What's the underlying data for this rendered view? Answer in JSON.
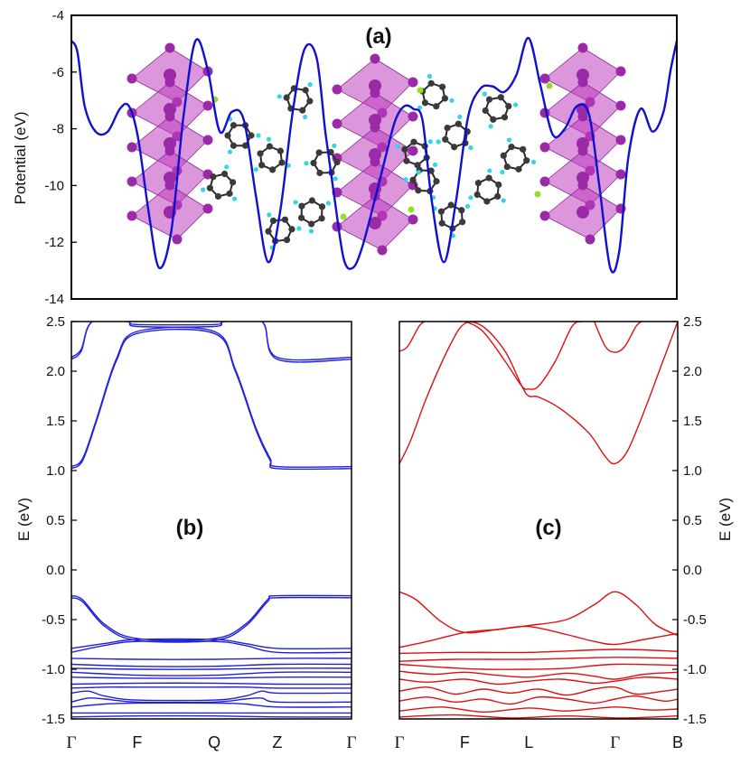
{
  "chart_data": [
    {
      "panel": "(a)",
      "type": "line",
      "ylabel": "Potential (eV)",
      "ylim": [
        -14,
        -4
      ],
      "yticks": [
        -14,
        -12,
        -10,
        -8,
        -6,
        -4
      ],
      "xlim": [
        0,
        1
      ],
      "series": [
        {
          "name": "planar-averaged potential",
          "color": "#1010d0",
          "x": [
            0.0,
            0.01,
            0.022,
            0.04,
            0.06,
            0.08,
            0.095,
            0.11,
            0.128,
            0.145,
            0.165,
            0.185,
            0.205,
            0.225,
            0.245,
            0.265,
            0.285,
            0.305,
            0.325,
            0.345,
            0.365,
            0.385,
            0.405,
            0.42,
            0.435,
            0.45,
            0.465,
            0.48,
            0.5,
            0.52,
            0.535,
            0.55,
            0.565,
            0.58,
            0.595,
            0.615,
            0.635,
            0.655,
            0.675,
            0.695,
            0.715,
            0.735,
            0.755,
            0.775,
            0.795,
            0.815,
            0.835,
            0.855,
            0.872,
            0.89,
            0.905,
            0.92,
            0.94,
            0.96,
            0.978,
            0.99,
            1.0
          ],
          "values": [
            -4.9,
            -5.3,
            -7.2,
            -8.1,
            -8.1,
            -7.3,
            -7.2,
            -8.3,
            -11.0,
            -12.9,
            -11.6,
            -7.6,
            -4.9,
            -5.9,
            -8.1,
            -7.4,
            -7.7,
            -10.4,
            -12.7,
            -10.9,
            -7.5,
            -5.2,
            -5.5,
            -8.2,
            -10.5,
            -12.6,
            -12.9,
            -12.2,
            -10.6,
            -8.9,
            -7.7,
            -7.2,
            -7.3,
            -7.7,
            -10.5,
            -12.7,
            -10.6,
            -7.6,
            -6.6,
            -6.5,
            -6.7,
            -6.1,
            -4.8,
            -6.5,
            -8.2,
            -8.0,
            -7.2,
            -7.5,
            -10.0,
            -12.9,
            -12.3,
            -9.0,
            -7.3,
            -8.1,
            -7.4,
            -5.9,
            -4.9
          ]
        }
      ]
    },
    {
      "panel": "(b)",
      "type": "line",
      "ylabel": "E (eV)",
      "ylim": [
        -1.5,
        2.5
      ],
      "yticks": [
        -1.5,
        -1.0,
        -0.5,
        0.0,
        0.5,
        1.0,
        1.5,
        2.0,
        2.5
      ],
      "ytick_labels": [
        "-1.5",
        "-1.0",
        "-0.5",
        "0.0",
        "0.5",
        "1.0",
        "1.5",
        "2.0",
        "2.5"
      ],
      "xlim": [
        0,
        1
      ],
      "kpoints": [
        {
          "label": "Γ",
          "x": 0.0
        },
        {
          "label": "F",
          "x": 0.235
        },
        {
          "label": "Q",
          "x": 0.51
        },
        {
          "label": "Z",
          "x": 0.735
        },
        {
          "label": "Γ",
          "x": 1.0
        }
      ],
      "series": [
        {
          "name": "cb1",
          "color": "#2020e0",
          "x": [
            0,
            0.04,
            0.09,
            0.16,
            0.235,
            0.51,
            0.585,
            0.66,
            0.71,
            0.735,
            1.0
          ],
          "values": [
            1.02,
            1.1,
            1.5,
            2.1,
            2.38,
            2.38,
            2.0,
            1.4,
            1.1,
            1.02,
            1.02
          ]
        },
        {
          "name": "cb2",
          "color": "#2020e0",
          "x": [
            0,
            0.04,
            0.09,
            0.16,
            0.235,
            0.51,
            0.585,
            0.66,
            0.71,
            0.735,
            1.0
          ],
          "values": [
            1.04,
            1.12,
            1.52,
            2.12,
            2.4,
            2.4,
            2.02,
            1.42,
            1.12,
            1.04,
            1.04
          ]
        },
        {
          "name": "cb3",
          "color": "#2020e0",
          "x": [
            0,
            0.035,
            0.075,
            0.2,
            0.235,
            0.51,
            0.545,
            0.68,
            0.735,
            1.0
          ],
          "values": [
            2.12,
            2.2,
            2.5,
            2.5,
            2.45,
            2.45,
            2.5,
            2.5,
            2.12,
            2.12
          ]
        },
        {
          "name": "cb4",
          "color": "#2020e0",
          "x": [
            0,
            0.035,
            0.075,
            0.2,
            0.235,
            0.51,
            0.545,
            0.68,
            0.735,
            1.0
          ],
          "values": [
            2.14,
            2.22,
            2.5,
            2.5,
            2.47,
            2.47,
            2.5,
            2.5,
            2.14,
            2.14
          ]
        },
        {
          "name": "vb1",
          "color": "#2020e0",
          "x": [
            0,
            0.04,
            0.12,
            0.235,
            0.51,
            0.62,
            0.7,
            0.735,
            1.0
          ],
          "values": [
            -0.26,
            -0.3,
            -0.55,
            -0.69,
            -0.69,
            -0.55,
            -0.3,
            -0.26,
            -0.26
          ]
        },
        {
          "name": "vb2",
          "color": "#2020e0",
          "x": [
            0,
            0.04,
            0.12,
            0.235,
            0.51,
            0.62,
            0.7,
            0.735,
            1.0
          ],
          "values": [
            -0.28,
            -0.32,
            -0.57,
            -0.71,
            -0.71,
            -0.57,
            -0.32,
            -0.28,
            -0.28
          ]
        },
        {
          "name": "vb3",
          "color": "#2020e0",
          "x": [
            0,
            0.12,
            0.235,
            0.51,
            0.62,
            0.735,
            1.0
          ],
          "values": [
            -0.79,
            -0.74,
            -0.7,
            -0.7,
            -0.74,
            -0.79,
            -0.79
          ]
        },
        {
          "name": "vb4",
          "color": "#2020e0",
          "x": [
            0,
            0.12,
            0.235,
            0.51,
            0.62,
            0.735,
            1.0
          ],
          "values": [
            -0.83,
            -0.76,
            -0.72,
            -0.72,
            -0.76,
            -0.83,
            -0.83
          ]
        },
        {
          "name": "vb5",
          "color": "#2020e0",
          "x": [
            0,
            0.235,
            0.51,
            0.735,
            1.0
          ],
          "values": [
            -0.89,
            -0.9,
            -0.9,
            -0.89,
            -0.89
          ]
        },
        {
          "name": "vb6",
          "color": "#2020e0",
          "x": [
            0,
            0.235,
            0.51,
            0.735,
            1.0
          ],
          "values": [
            -0.95,
            -0.97,
            -0.97,
            -0.95,
            -0.95
          ]
        },
        {
          "name": "vb7",
          "color": "#2020e0",
          "x": [
            0,
            0.235,
            0.51,
            0.735,
            1.0
          ],
          "values": [
            -0.99,
            -1.0,
            -1.0,
            -0.99,
            -0.99
          ]
        },
        {
          "name": "vb8",
          "color": "#2020e0",
          "x": [
            0,
            0.235,
            0.51,
            0.735,
            1.0
          ],
          "values": [
            -1.03,
            -1.06,
            -1.06,
            -1.03,
            -1.03
          ]
        },
        {
          "name": "vb9",
          "color": "#2020e0",
          "x": [
            0,
            0.235,
            0.51,
            0.735,
            1.0
          ],
          "values": [
            -1.08,
            -1.09,
            -1.09,
            -1.08,
            -1.08
          ]
        },
        {
          "name": "vb10",
          "color": "#2020e0",
          "x": [
            0,
            0.235,
            0.51,
            0.735,
            1.0
          ],
          "values": [
            -1.15,
            -1.14,
            -1.14,
            -1.15,
            -1.15
          ]
        },
        {
          "name": "vb11",
          "color": "#2020e0",
          "x": [
            0,
            0.12,
            0.235,
            0.51,
            0.62,
            0.735,
            1.0
          ],
          "values": [
            -1.19,
            -1.18,
            -1.18,
            -1.18,
            -1.18,
            -1.19,
            -1.19
          ]
        },
        {
          "name": "vb12",
          "color": "#2020e0",
          "x": [
            0,
            0.06,
            0.12,
            0.235,
            0.51,
            0.62,
            0.68,
            0.735,
            1.0
          ],
          "values": [
            -1.24,
            -1.22,
            -1.27,
            -1.31,
            -1.31,
            -1.27,
            -1.22,
            -1.24,
            -1.24
          ]
        },
        {
          "name": "vb13",
          "color": "#2020e0",
          "x": [
            0,
            0.06,
            0.12,
            0.235,
            0.51,
            0.62,
            0.68,
            0.735,
            1.0
          ],
          "values": [
            -1.33,
            -1.29,
            -1.3,
            -1.33,
            -1.33,
            -1.3,
            -1.29,
            -1.33,
            -1.33
          ]
        },
        {
          "name": "vb14",
          "color": "#2020e0",
          "x": [
            0,
            0.12,
            0.235,
            0.51,
            0.62,
            0.735,
            1.0
          ],
          "values": [
            -1.38,
            -1.35,
            -1.34,
            -1.34,
            -1.35,
            -1.38,
            -1.38
          ]
        },
        {
          "name": "vb15",
          "color": "#2020e0",
          "x": [
            0,
            0.235,
            0.51,
            0.735,
            1.0
          ],
          "values": [
            -1.44,
            -1.44,
            -1.44,
            -1.44,
            -1.44
          ]
        },
        {
          "name": "vb16",
          "color": "#2020e0",
          "x": [
            0,
            0.235,
            0.51,
            0.735,
            1.0
          ],
          "values": [
            -1.48,
            -1.47,
            -1.47,
            -1.48,
            -1.48
          ]
        }
      ]
    },
    {
      "panel": "(c)",
      "type": "line",
      "ylabel": "E (eV)",
      "ylim": [
        -1.5,
        2.5
      ],
      "yticks": [
        -1.5,
        -1.0,
        -0.5,
        0.0,
        0.5,
        1.0,
        1.5,
        2.0,
        2.5
      ],
      "ytick_labels": [
        "-1.5",
        "-1.0",
        "-0.5",
        "0.0",
        "0.5",
        "1.0",
        "1.5",
        "2.0",
        "2.5"
      ],
      "xlim": [
        0,
        1
      ],
      "kpoints": [
        {
          "label": "Γ",
          "x": 0.0
        },
        {
          "label": "F",
          "x": 0.235
        },
        {
          "label": "L",
          "x": 0.465
        },
        {
          "label": "Γ",
          "x": 0.775
        },
        {
          "label": "B",
          "x": 1.0
        }
      ],
      "series": [
        {
          "name": "cb1",
          "color": "#e01010",
          "x": [
            0,
            0.04,
            0.1,
            0.18,
            0.235,
            0.3,
            0.38,
            0.44,
            0.465,
            0.5,
            0.58,
            0.68,
            0.74,
            0.775,
            0.82,
            0.88,
            0.94,
            1.0
          ],
          "values": [
            1.07,
            1.3,
            1.75,
            2.25,
            2.48,
            2.45,
            2.2,
            1.85,
            1.75,
            1.74,
            1.62,
            1.38,
            1.14,
            1.07,
            1.2,
            1.6,
            2.05,
            2.5
          ]
        },
        {
          "name": "cb2",
          "color": "#e01010",
          "x": [
            0.2,
            0.235,
            0.3,
            0.38,
            0.44,
            0.465,
            0.5,
            0.56,
            0.62,
            0.655
          ],
          "values": [
            2.5,
            2.5,
            2.4,
            2.1,
            1.85,
            1.82,
            1.85,
            2.1,
            2.45,
            2.5
          ]
        },
        {
          "name": "cb3",
          "color": "#e01010",
          "x": [
            0,
            0.03,
            0.07,
            0.09
          ],
          "values": [
            2.2,
            2.25,
            2.45,
            2.5
          ]
        },
        {
          "name": "cb4",
          "color": "#e01010",
          "x": [
            0.7,
            0.74,
            0.775,
            0.81,
            0.85,
            0.87
          ],
          "values": [
            2.5,
            2.25,
            2.19,
            2.25,
            2.45,
            2.5
          ]
        },
        {
          "name": "vb1",
          "color": "#e01010",
          "x": [
            0,
            0.06,
            0.15,
            0.235,
            0.35,
            0.465,
            0.6,
            0.7,
            0.775,
            0.85,
            0.92,
            1.0
          ],
          "values": [
            -0.22,
            -0.3,
            -0.52,
            -0.63,
            -0.6,
            -0.56,
            -0.5,
            -0.35,
            -0.22,
            -0.35,
            -0.55,
            -0.66
          ]
        },
        {
          "name": "vb2",
          "color": "#e01010",
          "x": [
            0,
            0.1,
            0.235,
            0.35,
            0.465,
            0.6,
            0.7,
            0.775,
            0.88,
            1.0
          ],
          "values": [
            -0.78,
            -0.72,
            -0.63,
            -0.6,
            -0.57,
            -0.65,
            -0.72,
            -0.75,
            -0.7,
            -0.64
          ]
        },
        {
          "name": "vb3",
          "color": "#e01010",
          "x": [
            0,
            0.2,
            0.465,
            0.775,
            1.0
          ],
          "values": [
            -0.84,
            -0.83,
            -0.83,
            -0.8,
            -0.82
          ]
        },
        {
          "name": "vb4",
          "color": "#e01010",
          "x": [
            0,
            0.2,
            0.465,
            0.775,
            1.0
          ],
          "values": [
            -0.92,
            -0.9,
            -0.9,
            -0.88,
            -0.89
          ]
        },
        {
          "name": "vb5",
          "color": "#e01010",
          "x": [
            0,
            0.15,
            0.3,
            0.465,
            0.6,
            0.775,
            1.0
          ],
          "values": [
            -0.95,
            -0.98,
            -1.0,
            -1.0,
            -0.99,
            -0.95,
            -0.96
          ]
        },
        {
          "name": "vb6",
          "color": "#e01010",
          "x": [
            0,
            0.12,
            0.235,
            0.35,
            0.465,
            0.6,
            0.7,
            0.775,
            0.88,
            1.0
          ],
          "values": [
            -1.02,
            -1.05,
            -1.03,
            -1.06,
            -1.08,
            -1.04,
            -1.07,
            -1.1,
            -1.05,
            -1.03
          ]
        },
        {
          "name": "vb7",
          "color": "#e01010",
          "x": [
            0,
            0.1,
            0.235,
            0.35,
            0.465,
            0.58,
            0.7,
            0.775,
            0.88,
            1.0
          ],
          "values": [
            -1.1,
            -1.13,
            -1.1,
            -1.15,
            -1.12,
            -1.1,
            -1.14,
            -1.12,
            -1.08,
            -1.1
          ]
        },
        {
          "name": "vb8",
          "color": "#e01010",
          "x": [
            0,
            0.1,
            0.2,
            0.3,
            0.4,
            0.5,
            0.6,
            0.7,
            0.775,
            0.85,
            0.95,
            1.0
          ],
          "values": [
            -1.22,
            -1.18,
            -1.25,
            -1.2,
            -1.24,
            -1.2,
            -1.26,
            -1.2,
            -1.18,
            -1.25,
            -1.22,
            -1.2
          ]
        },
        {
          "name": "vb9",
          "color": "#e01010",
          "x": [
            0,
            0.1,
            0.2,
            0.3,
            0.4,
            0.5,
            0.6,
            0.7,
            0.775,
            0.85,
            0.95,
            1.0
          ],
          "values": [
            -1.32,
            -1.28,
            -1.33,
            -1.3,
            -1.35,
            -1.28,
            -1.3,
            -1.34,
            -1.3,
            -1.27,
            -1.32,
            -1.3
          ]
        },
        {
          "name": "vb10",
          "color": "#e01010",
          "x": [
            0,
            0.15,
            0.3,
            0.465,
            0.6,
            0.775,
            0.9,
            1.0
          ],
          "values": [
            -1.42,
            -1.38,
            -1.43,
            -1.39,
            -1.42,
            -1.38,
            -1.41,
            -1.4
          ]
        },
        {
          "name": "vb11",
          "color": "#e01010",
          "x": [
            0,
            0.2,
            0.4,
            0.6,
            0.8,
            1.0
          ],
          "values": [
            -1.48,
            -1.46,
            -1.49,
            -1.47,
            -1.49,
            -1.47
          ]
        }
      ]
    }
  ],
  "structure": {
    "octahedron_color": "#c040c0",
    "halide_color": "#9a2aa8",
    "carbon_color": "#3a3a3a",
    "hydrogen_color": "#33d6e6",
    "nitrogen_color": "#99dd22"
  }
}
